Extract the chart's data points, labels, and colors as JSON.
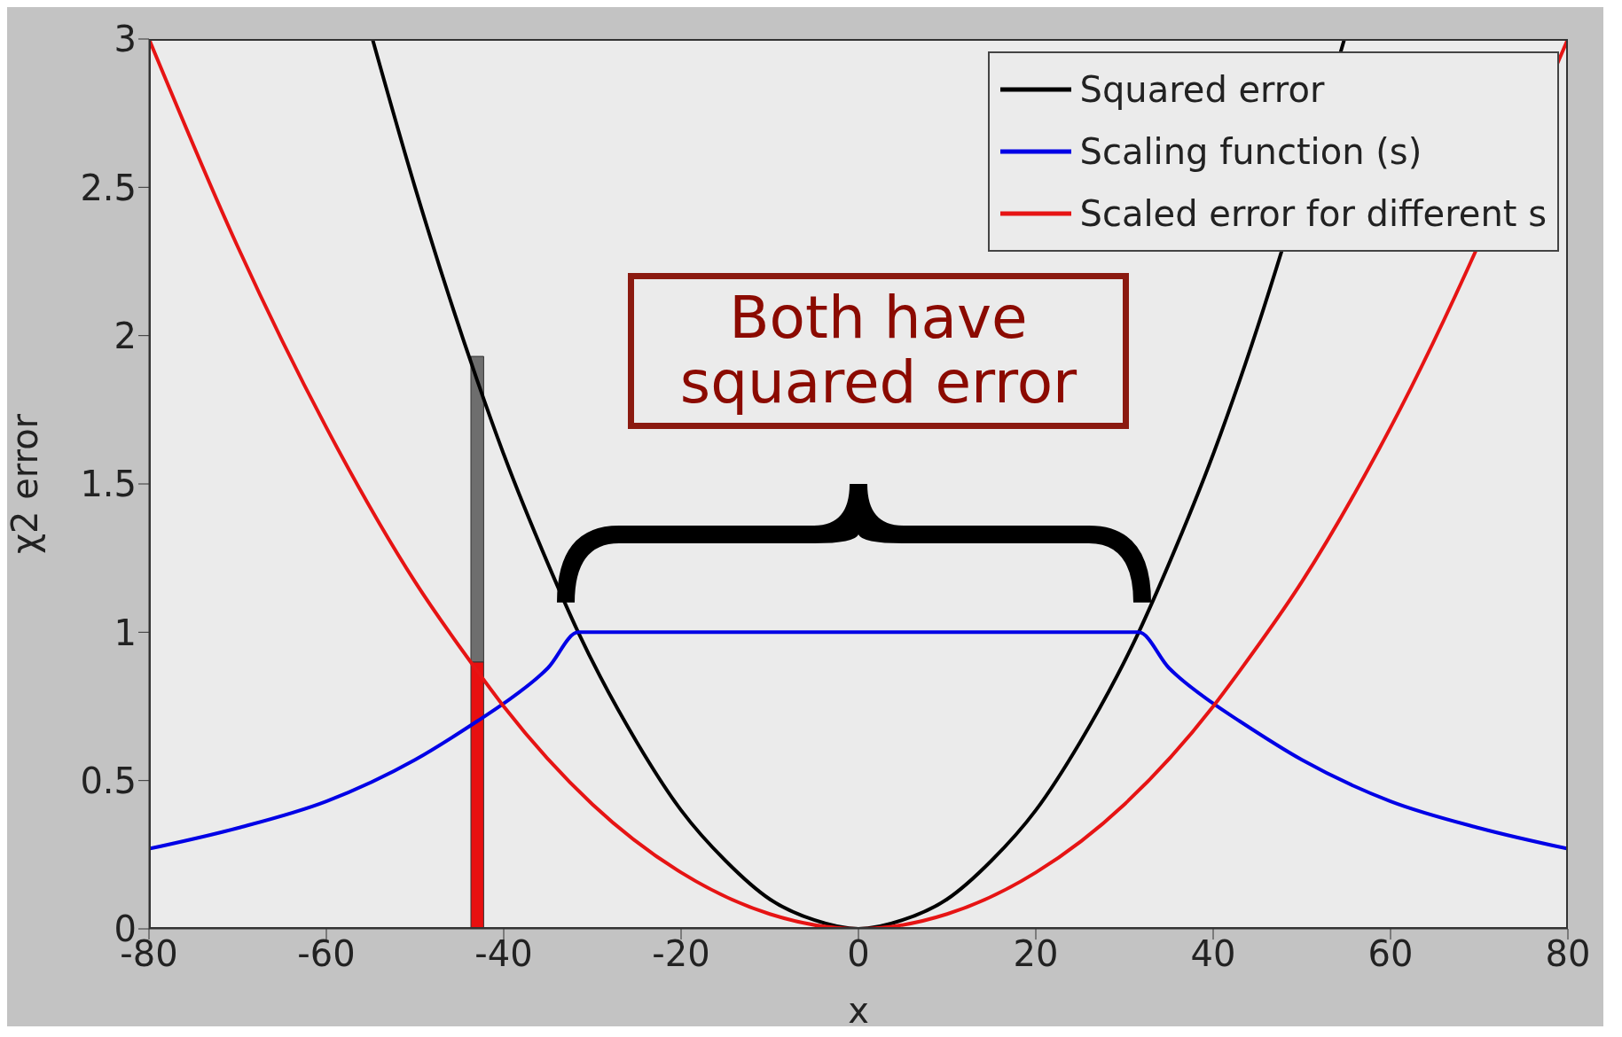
{
  "chart_data": {
    "type": "line",
    "xlabel": "x",
    "ylabel": "χ2 error",
    "xlim": [
      -80,
      80
    ],
    "xticks": [
      -80,
      -60,
      -40,
      -20,
      0,
      20,
      40,
      60,
      80
    ],
    "ylim": [
      0,
      3
    ],
    "yticks": [
      0,
      0.5,
      1,
      1.5,
      2,
      2.5,
      3
    ],
    "legend": "top right",
    "stacked": true,
    "line_style": "solid",
    "marker": "none",
    "annotations": [
      "Both have squared error"
    ],
    "series": [
      {
        "name": "Squared error",
        "color": "#000000",
        "x": [
          -54.8,
          -50,
          -43,
          -40,
          -35,
          -31.6,
          -25,
          -20,
          -15,
          -10,
          -5,
          0,
          5,
          10,
          15,
          20,
          25,
          31.6,
          35,
          40,
          43,
          50,
          54.8
        ],
        "values": [
          3.0,
          2.5,
          1.85,
          1.6,
          1.23,
          1.0,
          0.63,
          0.4,
          0.23,
          0.1,
          0.03,
          0,
          0.03,
          0.1,
          0.23,
          0.4,
          0.63,
          1.0,
          1.23,
          1.6,
          1.85,
          null,
          3.0
        ]
      },
      {
        "name": "Scaling function (s)",
        "color": "#0000e6",
        "x": [
          -80,
          -70,
          -60,
          -50,
          -43,
          -40,
          -35,
          -31.6,
          0,
          31.6,
          35,
          40,
          43,
          50,
          60,
          70,
          80
        ],
        "values": [
          0.27,
          0.34,
          0.43,
          0.57,
          0.7,
          0.76,
          0.88,
          1.0,
          1.0,
          1.0,
          0.88,
          0.76,
          0.7,
          0.57,
          0.43,
          0.34,
          0.27
        ]
      },
      {
        "name": "Scaled error for different s",
        "color": "#e61414",
        "x": [
          -80,
          -70,
          -60,
          -50,
          -43,
          -40,
          -30,
          -20,
          -10,
          0,
          10,
          20,
          30,
          40,
          43,
          50,
          60,
          70,
          80
        ],
        "values": [
          3.0,
          2.3,
          1.69,
          1.17,
          0.87,
          0.75,
          0.42,
          0.19,
          0.05,
          0,
          0.05,
          0.19,
          0.42,
          0.75,
          0.87,
          1.17,
          1.69,
          null,
          3.0
        ]
      },
      {
        "type": "bar",
        "color": "#e81010",
        "x": [
          -43
        ],
        "values": [
          0.9
        ]
      },
      {
        "type": "bar",
        "color": "#6e6e6e",
        "x": [
          -43
        ],
        "values": [
          1.03
        ]
      }
    ]
  }
}
